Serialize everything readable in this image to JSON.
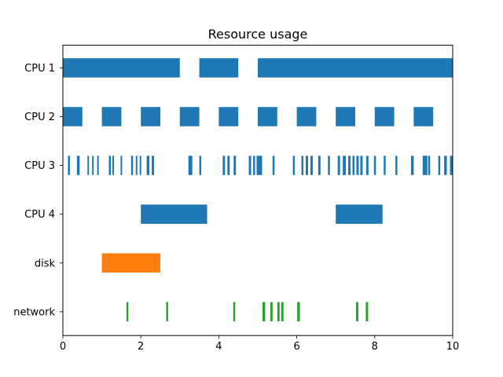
{
  "chart_data": {
    "type": "broken_barh",
    "title": "Resource usage",
    "xlabel": "",
    "ylabel": "",
    "xlim": [
      0,
      10
    ],
    "x_ticks": [
      0,
      2,
      4,
      6,
      8,
      10
    ],
    "grid": false,
    "legend": "none",
    "categories": [
      "CPU 1",
      "CPU 2",
      "CPU 3",
      "CPU 4",
      "disk",
      "network"
    ],
    "series": [
      {
        "category": "CPU 1",
        "color": "#1f77b4",
        "bars": [
          [
            0,
            3
          ],
          [
            3.5,
            1
          ],
          [
            5,
            5
          ]
        ]
      },
      {
        "category": "CPU 2",
        "color": "#1f77b4",
        "bars": [
          [
            0,
            0.5
          ],
          [
            1,
            0.5
          ],
          [
            2,
            0.5
          ],
          [
            3,
            0.5
          ],
          [
            4,
            0.5
          ],
          [
            5,
            0.5
          ],
          [
            6,
            0.5
          ],
          [
            7,
            0.5
          ],
          [
            8,
            0.5
          ],
          [
            9,
            0.5
          ]
        ]
      },
      {
        "category": "CPU 3",
        "color": "#1f77b4",
        "bars": [
          [
            0.13,
            0.05
          ],
          [
            0.36,
            0.07
          ],
          [
            0.63,
            0.04
          ],
          [
            0.75,
            0.04
          ],
          [
            0.88,
            0.04
          ],
          [
            1.18,
            0.05
          ],
          [
            1.27,
            0.04
          ],
          [
            1.48,
            0.04
          ],
          [
            1.75,
            0.05
          ],
          [
            1.87,
            0.04
          ],
          [
            1.97,
            0.04
          ],
          [
            2.15,
            0.07
          ],
          [
            2.28,
            0.06
          ],
          [
            3.22,
            0.1
          ],
          [
            3.5,
            0.05
          ],
          [
            4.1,
            0.06
          ],
          [
            4.22,
            0.06
          ],
          [
            4.38,
            0.06
          ],
          [
            4.77,
            0.06
          ],
          [
            4.88,
            0.05
          ],
          [
            4.97,
            0.14
          ],
          [
            5.38,
            0.05
          ],
          [
            5.9,
            0.05
          ],
          [
            6.12,
            0.05
          ],
          [
            6.23,
            0.06
          ],
          [
            6.35,
            0.06
          ],
          [
            6.55,
            0.06
          ],
          [
            6.8,
            0.05
          ],
          [
            7.05,
            0.06
          ],
          [
            7.18,
            0.08
          ],
          [
            7.32,
            0.06
          ],
          [
            7.43,
            0.05
          ],
          [
            7.53,
            0.06
          ],
          [
            7.63,
            0.06
          ],
          [
            7.78,
            0.06
          ],
          [
            7.98,
            0.05
          ],
          [
            8.23,
            0.05
          ],
          [
            8.53,
            0.05
          ],
          [
            8.93,
            0.07
          ],
          [
            9.23,
            0.12
          ],
          [
            9.37,
            0.05
          ],
          [
            9.63,
            0.05
          ],
          [
            9.78,
            0.07
          ],
          [
            9.93,
            0.07
          ]
        ]
      },
      {
        "category": "CPU 4",
        "color": "#1f77b4",
        "bars": [
          [
            2,
            1.7
          ],
          [
            7,
            1.2
          ]
        ]
      },
      {
        "category": "disk",
        "color": "#ff7f0e",
        "bars": [
          [
            1,
            1.5
          ]
        ]
      },
      {
        "category": "network",
        "color": "#2ca02c",
        "bars": [
          [
            1.63,
            0.05
          ],
          [
            2.65,
            0.05
          ],
          [
            4.37,
            0.05
          ],
          [
            5.12,
            0.07
          ],
          [
            5.32,
            0.06
          ],
          [
            5.5,
            0.06
          ],
          [
            5.6,
            0.06
          ],
          [
            6.01,
            0.07
          ],
          [
            7.52,
            0.06
          ],
          [
            7.77,
            0.06
          ]
        ]
      }
    ]
  }
}
